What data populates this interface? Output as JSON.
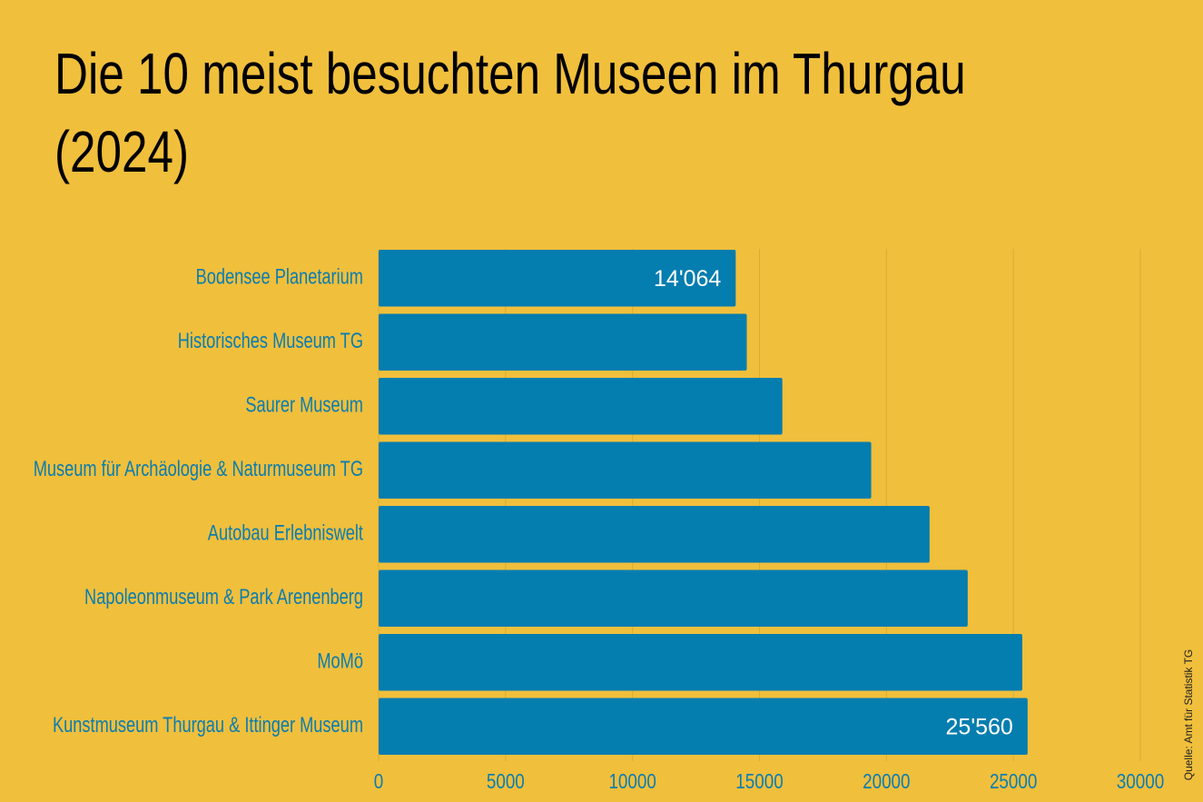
{
  "chart_data": {
    "type": "bar",
    "title": "Die 10 meist besuchten Museen im Thurgau (2024)",
    "categories": [
      "Bodensee Planetarium",
      "Historisches Museum TG",
      "Saurer Museum",
      "Museum für Archäologie & Naturmuseum TG",
      "Autobau Erlebniswelt",
      "Napoleonmuseum & Park Arenenberg",
      "MoMö",
      "Kunstmuseum Thurgau & Ittinger Museum"
    ],
    "values": [
      14064,
      14500,
      15900,
      19400,
      21700,
      23200,
      25350,
      25560
    ],
    "value_labels": [
      "14'064",
      null,
      null,
      null,
      null,
      null,
      null,
      "25'560"
    ],
    "color": "#047daf",
    "xlim": [
      0,
      30000
    ],
    "xticks": [
      0,
      5000,
      10000,
      15000,
      20000,
      25000,
      30000
    ],
    "grid": true,
    "source": "Quelle: Amt für Statistik TG"
  }
}
